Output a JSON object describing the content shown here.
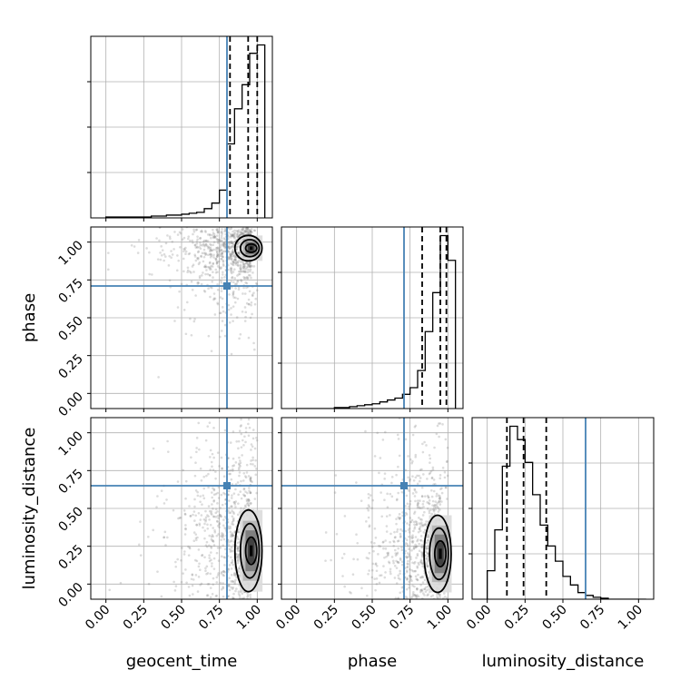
{
  "chart_data": {
    "type": "corner",
    "parameters": [
      "geocent_time",
      "phase",
      "luminosity_distance"
    ],
    "axis_range": [
      -0.1,
      1.1
    ],
    "tick_values": [
      0.0,
      0.25,
      0.5,
      0.75,
      1.0
    ],
    "tick_labels": [
      "0.00",
      "0.25",
      "0.50",
      "0.75",
      "1.00"
    ],
    "grid": true,
    "colors": {
      "truth": "#4682b4",
      "hist": "#000000",
      "scatter": "#808080",
      "grid": "#b0b0b0"
    },
    "truths": {
      "geocent_time": 0.8,
      "phase": 0.71,
      "luminosity_distance": 0.65
    },
    "quantiles": {
      "geocent_time": [
        0.82,
        0.94,
        1.0
      ],
      "phase": [
        0.83,
        0.95,
        0.99
      ],
      "luminosity_distance": [
        0.13,
        0.24,
        0.39
      ]
    },
    "histograms": {
      "geocent_time": {
        "bin_edges": [
          0.0,
          0.05,
          0.1,
          0.15,
          0.2,
          0.25,
          0.3,
          0.35,
          0.4,
          0.45,
          0.5,
          0.55,
          0.6,
          0.65,
          0.7,
          0.75,
          0.8,
          0.85,
          0.9,
          0.95,
          1.0,
          1.05
        ],
        "counts": [
          1,
          1,
          1,
          1,
          1,
          1,
          2,
          2,
          3,
          3,
          4,
          5,
          6,
          10,
          16,
          30,
          80,
          118,
          144,
          178,
          187
        ]
      },
      "phase": {
        "bin_edges": [
          0.0,
          0.05,
          0.1,
          0.15,
          0.2,
          0.25,
          0.3,
          0.35,
          0.4,
          0.45,
          0.5,
          0.55,
          0.6,
          0.65,
          0.7,
          0.75,
          0.8,
          0.85,
          0.9,
          0.95,
          1.0,
          1.05
        ],
        "counts": [
          0,
          0,
          0,
          0,
          0,
          1,
          1,
          2,
          3,
          4,
          5,
          7,
          9,
          11,
          15,
          22,
          40,
          81,
          122,
          182,
          156
        ]
      },
      "luminosity_distance": {
        "bin_edges": [
          0.0,
          0.05,
          0.1,
          0.15,
          0.2,
          0.25,
          0.3,
          0.35,
          0.4,
          0.45,
          0.5,
          0.55,
          0.6,
          0.65,
          0.7,
          0.75,
          0.8,
          0.85,
          0.9,
          0.95,
          1.0,
          1.05
        ],
        "counts": [
          30,
          73,
          140,
          182,
          168,
          144,
          110,
          78,
          56,
          40,
          24,
          15,
          7,
          4,
          2,
          1,
          0,
          0,
          0,
          0,
          0
        ]
      }
    },
    "contours": {
      "geocent_time__phase": {
        "center": [
          0.96,
          0.96
        ],
        "sigma": [
          0.025,
          0.028
        ],
        "levels": [
          1,
          2,
          3
        ]
      },
      "geocent_time__luminosity_distance": {
        "center": [
          0.96,
          0.22
        ],
        "sigma": [
          0.025,
          0.09
        ],
        "levels": [
          1,
          2,
          3
        ]
      },
      "phase__luminosity_distance": {
        "center": [
          0.95,
          0.2
        ],
        "sigma": [
          0.025,
          0.085
        ],
        "levels": [
          1,
          2,
          3
        ]
      }
    }
  }
}
